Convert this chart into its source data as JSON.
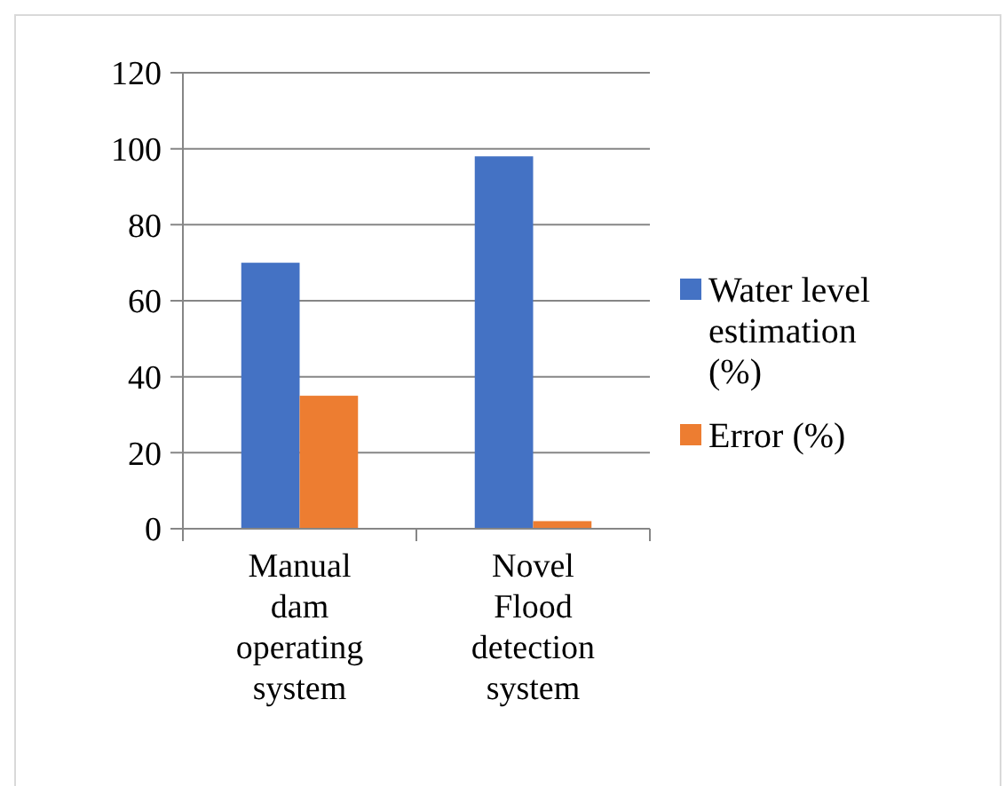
{
  "chart_data": {
    "type": "bar",
    "categories": [
      "Manual dam operating system",
      "Novel Flood detection system"
    ],
    "series": [
      {
        "name": "Water level estimation (%)",
        "color": "#4472c4",
        "values": [
          70,
          98
        ]
      },
      {
        "name": "Error (%)",
        "color": "#ed7d31",
        "values": [
          35,
          2
        ]
      }
    ],
    "ylim": [
      0,
      120
    ],
    "yticks": [
      0,
      20,
      40,
      60,
      80,
      100,
      120
    ],
    "grid": "y",
    "legend": "right"
  }
}
